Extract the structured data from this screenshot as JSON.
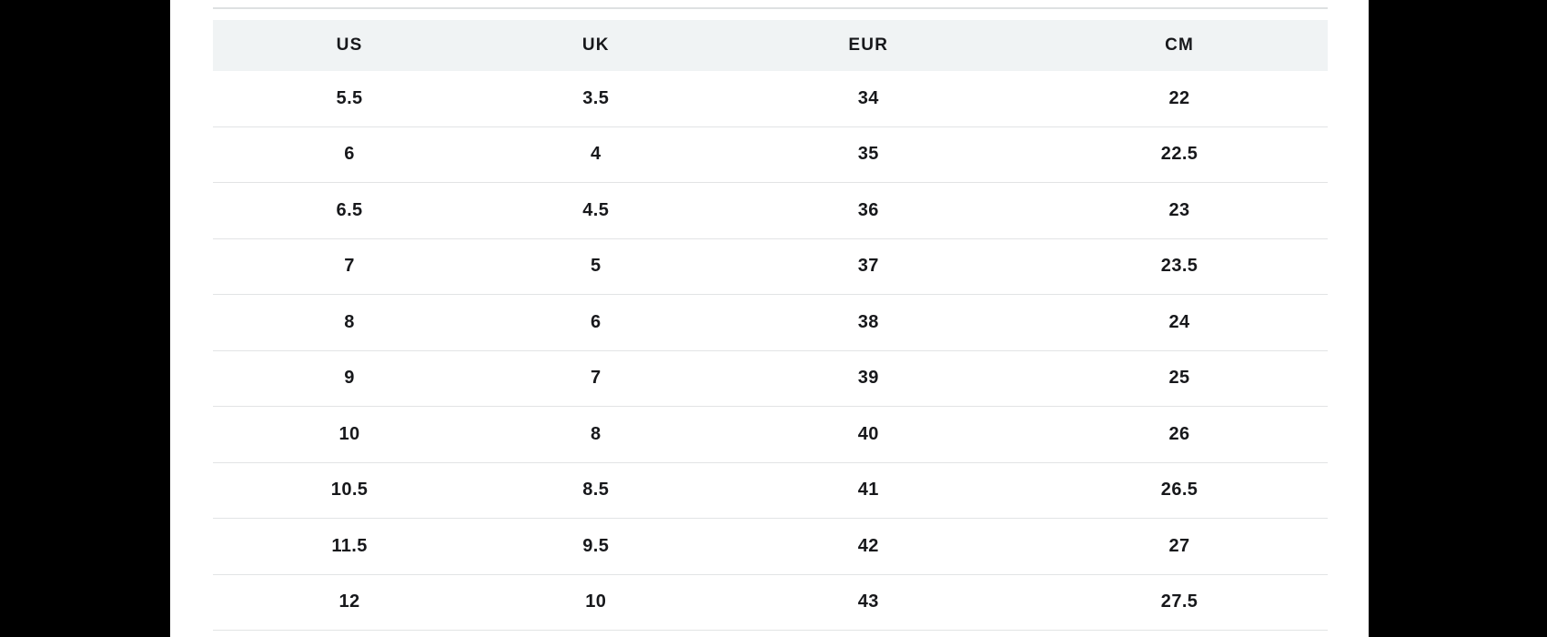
{
  "layout_colors": {
    "side_panel": "#000000",
    "header_bg": "#f0f3f4",
    "row_border": "#e2e4e5",
    "top_divider": "#dee1e2",
    "text": "#17181b",
    "page_bg": "#ffffff"
  },
  "size_chart": {
    "columns": [
      "US",
      "UK",
      "EUR",
      "CM"
    ],
    "rows": [
      [
        "5.5",
        "3.5",
        "34",
        "22"
      ],
      [
        "6",
        "4",
        "35",
        "22.5"
      ],
      [
        "6.5",
        "4.5",
        "36",
        "23"
      ],
      [
        "7",
        "5",
        "37",
        "23.5"
      ],
      [
        "8",
        "6",
        "38",
        "24"
      ],
      [
        "9",
        "7",
        "39",
        "25"
      ],
      [
        "10",
        "8",
        "40",
        "26"
      ],
      [
        "10.5",
        "8.5",
        "41",
        "26.5"
      ],
      [
        "11.5",
        "9.5",
        "42",
        "27"
      ],
      [
        "12",
        "10",
        "43",
        "27.5"
      ]
    ]
  }
}
